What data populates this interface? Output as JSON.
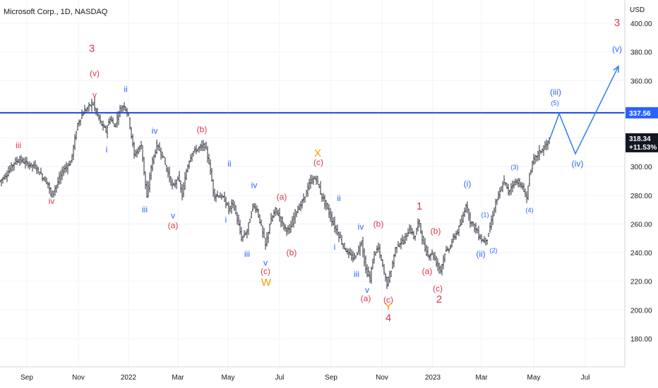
{
  "chart_data": {
    "type": "ohlc",
    "title": "Microsoft Corp., 1D, NASDAQ",
    "unit": "USD",
    "ylim": [
      170,
      410
    ],
    "y_ticks": [
      180,
      200,
      220,
      240,
      260,
      280,
      300,
      320,
      340,
      360,
      380,
      400
    ],
    "y_tick_labels": [
      "180.00",
      "200.00",
      "220.00",
      "240.00",
      "260.00",
      "280.00",
      "300.00",
      "320.00",
      "340.00",
      "360.00",
      "380.00",
      "400.00"
    ],
    "x_domain": [
      0,
      880
    ],
    "x_ticks": [
      {
        "label": "Sep",
        "x": 38
      },
      {
        "label": "Nov",
        "x": 111
      },
      {
        "label": "2022",
        "x": 182
      },
      {
        "label": "Mar",
        "x": 252
      },
      {
        "label": "May",
        "x": 323
      },
      {
        "label": "Jul",
        "x": 396
      },
      {
        "label": "Sep",
        "x": 469
      },
      {
        "label": "Nov",
        "x": 541
      },
      {
        "label": "2023",
        "x": 613
      },
      {
        "label": "Mar",
        "x": 682
      },
      {
        "label": "May",
        "x": 756
      },
      {
        "label": "Jul",
        "x": 829
      }
    ],
    "price_path": [
      [
        0,
        290
      ],
      [
        10,
        295
      ],
      [
        20,
        303
      ],
      [
        28,
        305
      ],
      [
        38,
        302
      ],
      [
        50,
        300
      ],
      [
        60,
        293
      ],
      [
        68,
        288
      ],
      [
        72,
        280
      ],
      [
        80,
        287
      ],
      [
        90,
        298
      ],
      [
        100,
        303
      ],
      [
        110,
        330
      ],
      [
        118,
        338
      ],
      [
        126,
        342
      ],
      [
        131,
        345
      ],
      [
        137,
        337
      ],
      [
        143,
        330
      ],
      [
        150,
        325
      ],
      [
        156,
        334
      ],
      [
        162,
        328
      ],
      [
        170,
        340
      ],
      [
        176,
        343
      ],
      [
        182,
        335
      ],
      [
        190,
        308
      ],
      [
        200,
        315
      ],
      [
        208,
        278
      ],
      [
        214,
        300
      ],
      [
        222,
        315
      ],
      [
        230,
        308
      ],
      [
        238,
        295
      ],
      [
        245,
        285
      ],
      [
        252,
        293
      ],
      [
        258,
        280
      ],
      [
        265,
        300
      ],
      [
        272,
        310
      ],
      [
        282,
        313
      ],
      [
        290,
        315
      ],
      [
        296,
        303
      ],
      [
        303,
        280
      ],
      [
        310,
        280
      ],
      [
        318,
        277
      ],
      [
        324,
        270
      ],
      [
        330,
        275
      ],
      [
        336,
        263
      ],
      [
        342,
        250
      ],
      [
        350,
        255
      ],
      [
        358,
        273
      ],
      [
        364,
        270
      ],
      [
        370,
        258
      ],
      [
        376,
        245
      ],
      [
        382,
        260
      ],
      [
        390,
        270
      ],
      [
        396,
        265
      ],
      [
        402,
        258
      ],
      [
        410,
        255
      ],
      [
        418,
        268
      ],
      [
        426,
        273
      ],
      [
        432,
        280
      ],
      [
        440,
        290
      ],
      [
        448,
        292
      ],
      [
        455,
        280
      ],
      [
        462,
        273
      ],
      [
        468,
        265
      ],
      [
        474,
        258
      ],
      [
        480,
        252
      ],
      [
        486,
        245
      ],
      [
        492,
        240
      ],
      [
        500,
        236
      ],
      [
        506,
        240
      ],
      [
        512,
        248
      ],
      [
        518,
        228
      ],
      [
        524,
        222
      ],
      [
        530,
        240
      ],
      [
        536,
        243
      ],
      [
        542,
        230
      ],
      [
        548,
        218
      ],
      [
        554,
        228
      ],
      [
        560,
        243
      ],
      [
        566,
        247
      ],
      [
        572,
        248
      ],
      [
        580,
        257
      ],
      [
        587,
        250
      ],
      [
        593,
        263
      ],
      [
        600,
        245
      ],
      [
        606,
        238
      ],
      [
        612,
        240
      ],
      [
        618,
        233
      ],
      [
        624,
        228
      ],
      [
        630,
        240
      ],
      [
        636,
        243
      ],
      [
        642,
        250
      ],
      [
        648,
        255
      ],
      [
        654,
        262
      ],
      [
        660,
        274
      ],
      [
        666,
        262
      ],
      [
        672,
        258
      ],
      [
        678,
        252
      ],
      [
        684,
        248
      ],
      [
        690,
        250
      ],
      [
        696,
        262
      ],
      [
        702,
        275
      ],
      [
        708,
        282
      ],
      [
        714,
        290
      ],
      [
        720,
        282
      ],
      [
        726,
        288
      ],
      [
        733,
        290
      ],
      [
        740,
        285
      ],
      [
        746,
        278
      ],
      [
        750,
        295
      ],
      [
        756,
        305
      ],
      [
        764,
        310
      ],
      [
        772,
        314
      ],
      [
        778,
        318.34
      ]
    ],
    "last_price": "318.34",
    "last_change": "+11.53%",
    "resistance": {
      "value": 337.56,
      "label": "337.56"
    },
    "projection": [
      [
        778,
        318.34
      ],
      [
        792,
        337
      ],
      [
        815,
        309
      ],
      [
        876,
        370
      ]
    ],
    "wave_labels": [
      {
        "text": "iii",
        "x": 26,
        "y": 313,
        "color": "#e0344f"
      },
      {
        "text": "iv",
        "x": 73,
        "y": 274,
        "color": "#e0344f"
      },
      {
        "text": "3",
        "x": 130,
        "y": 380,
        "color": "#e0344f",
        "big": true
      },
      {
        "text": "(v)",
        "x": 134,
        "y": 363,
        "color": "#e0344f"
      },
      {
        "text": "v",
        "x": 134,
        "y": 348,
        "color": "#e0344f"
      },
      {
        "text": "ii",
        "x": 178,
        "y": 352,
        "color": "#2962ff"
      },
      {
        "text": "i",
        "x": 151,
        "y": 310,
        "color": "#2962ff"
      },
      {
        "text": "iv",
        "x": 219,
        "y": 323,
        "color": "#2962ff"
      },
      {
        "text": "iii",
        "x": 205,
        "y": 268,
        "color": "#2962ff"
      },
      {
        "text": "v",
        "x": 245,
        "y": 264,
        "color": "#2962ff"
      },
      {
        "text": "(a)",
        "x": 245,
        "y": 257,
        "color": "#e0344f"
      },
      {
        "text": "(b)",
        "x": 286,
        "y": 324,
        "color": "#e0344f"
      },
      {
        "text": "ii",
        "x": 325,
        "y": 300,
        "color": "#2962ff"
      },
      {
        "text": "i",
        "x": 320,
        "y": 261,
        "color": "#2962ff"
      },
      {
        "text": "iv",
        "x": 360,
        "y": 285,
        "color": "#2962ff"
      },
      {
        "text": "iii",
        "x": 350,
        "y": 237,
        "color": "#2962ff"
      },
      {
        "text": "v",
        "x": 376,
        "y": 231,
        "color": "#2962ff"
      },
      {
        "text": "(c)",
        "x": 376,
        "y": 225,
        "color": "#e0344f"
      },
      {
        "text": "W",
        "x": 377,
        "y": 217,
        "color": "#ff9800",
        "big": true
      },
      {
        "text": "(a)",
        "x": 399,
        "y": 277,
        "color": "#e0344f"
      },
      {
        "text": "(b)",
        "x": 413,
        "y": 238,
        "color": "#e0344f"
      },
      {
        "text": "X",
        "x": 450,
        "y": 307,
        "color": "#ff9800",
        "big": true
      },
      {
        "text": "(c)",
        "x": 451,
        "y": 301,
        "color": "#e0344f"
      },
      {
        "text": "ii",
        "x": 480,
        "y": 276,
        "color": "#2962ff"
      },
      {
        "text": "i",
        "x": 474,
        "y": 242,
        "color": "#2962ff"
      },
      {
        "text": "iv",
        "x": 511,
        "y": 256,
        "color": "#2962ff"
      },
      {
        "text": "(b)",
        "x": 536,
        "y": 258,
        "color": "#e0344f"
      },
      {
        "text": "iii",
        "x": 505,
        "y": 223,
        "color": "#2962ff"
      },
      {
        "text": "v",
        "x": 520,
        "y": 212,
        "color": "#2962ff"
      },
      {
        "text": "(a)",
        "x": 518,
        "y": 206,
        "color": "#e0344f"
      },
      {
        "text": "(c)",
        "x": 550,
        "y": 205,
        "color": "#e0344f"
      },
      {
        "text": "Y",
        "x": 550,
        "y": 200,
        "color": "#ff9800",
        "big": true
      },
      {
        "text": "4",
        "x": 550,
        "y": 192,
        "color": "#e0344f",
        "big": true
      },
      {
        "text": "1",
        "x": 594,
        "y": 270,
        "color": "#e0344f",
        "big": true
      },
      {
        "text": "(b)",
        "x": 617,
        "y": 253,
        "color": "#e0344f"
      },
      {
        "text": "(a)",
        "x": 605,
        "y": 225,
        "color": "#e0344f"
      },
      {
        "text": "(c)",
        "x": 620,
        "y": 213,
        "color": "#e0344f"
      },
      {
        "text": "2",
        "x": 622,
        "y": 205,
        "color": "#e0344f",
        "big": true
      },
      {
        "text": "(i)",
        "x": 662,
        "y": 286,
        "color": "#2962ff"
      },
      {
        "text": "(1)",
        "x": 687,
        "y": 265,
        "color": "#2962ff",
        "small": true
      },
      {
        "text": "(ii)",
        "x": 681,
        "y": 237,
        "color": "#2962ff"
      },
      {
        "text": "(2)",
        "x": 699,
        "y": 240,
        "color": "#2962ff",
        "small": true
      },
      {
        "text": "(3)",
        "x": 729,
        "y": 298,
        "color": "#2962ff",
        "small": true
      },
      {
        "text": "(4)",
        "x": 750,
        "y": 268,
        "color": "#2962ff",
        "small": true
      },
      {
        "text": "(iii)",
        "x": 787,
        "y": 350,
        "color": "#2962ff"
      },
      {
        "text": "(5)",
        "x": 786,
        "y": 343,
        "color": "#2962ff",
        "small": true
      },
      {
        "text": "(iv)",
        "x": 818,
        "y": 300,
        "color": "#2962ff"
      },
      {
        "text": "3",
        "x": 874,
        "y": 398,
        "color": "#e0344f",
        "big": true
      },
      {
        "text": "(v)",
        "x": 874,
        "y": 380,
        "color": "#2962ff"
      }
    ]
  },
  "colors": {
    "resistance": "#1c48d6",
    "projection": "#2f7cf6",
    "bars": "#131722",
    "price_tag_bg": "#131722",
    "resistance_tag_bg": "#2962ff",
    "grid": "#f0f3fa"
  }
}
